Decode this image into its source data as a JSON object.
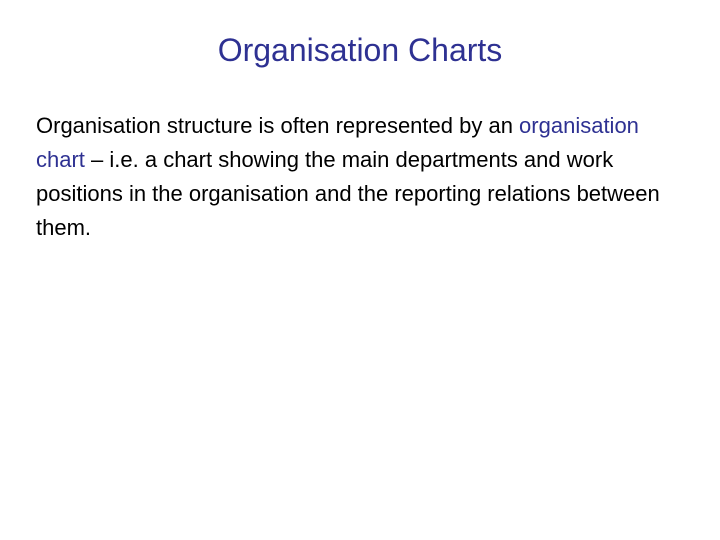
{
  "slide": {
    "title": "Organisation Charts",
    "title_color": "#2e3192",
    "title_fontsize": 32,
    "body_fontsize": 22,
    "body_color": "#000000",
    "highlight_color": "#2e3192",
    "background_color": "#ffffff",
    "body": {
      "part1": "Organisation structure is often represented by an ",
      "highlight": "organisation chart",
      "part2": " – i.e. a chart showing the main departments and work positions in the organisation and the reporting relations between them."
    }
  }
}
